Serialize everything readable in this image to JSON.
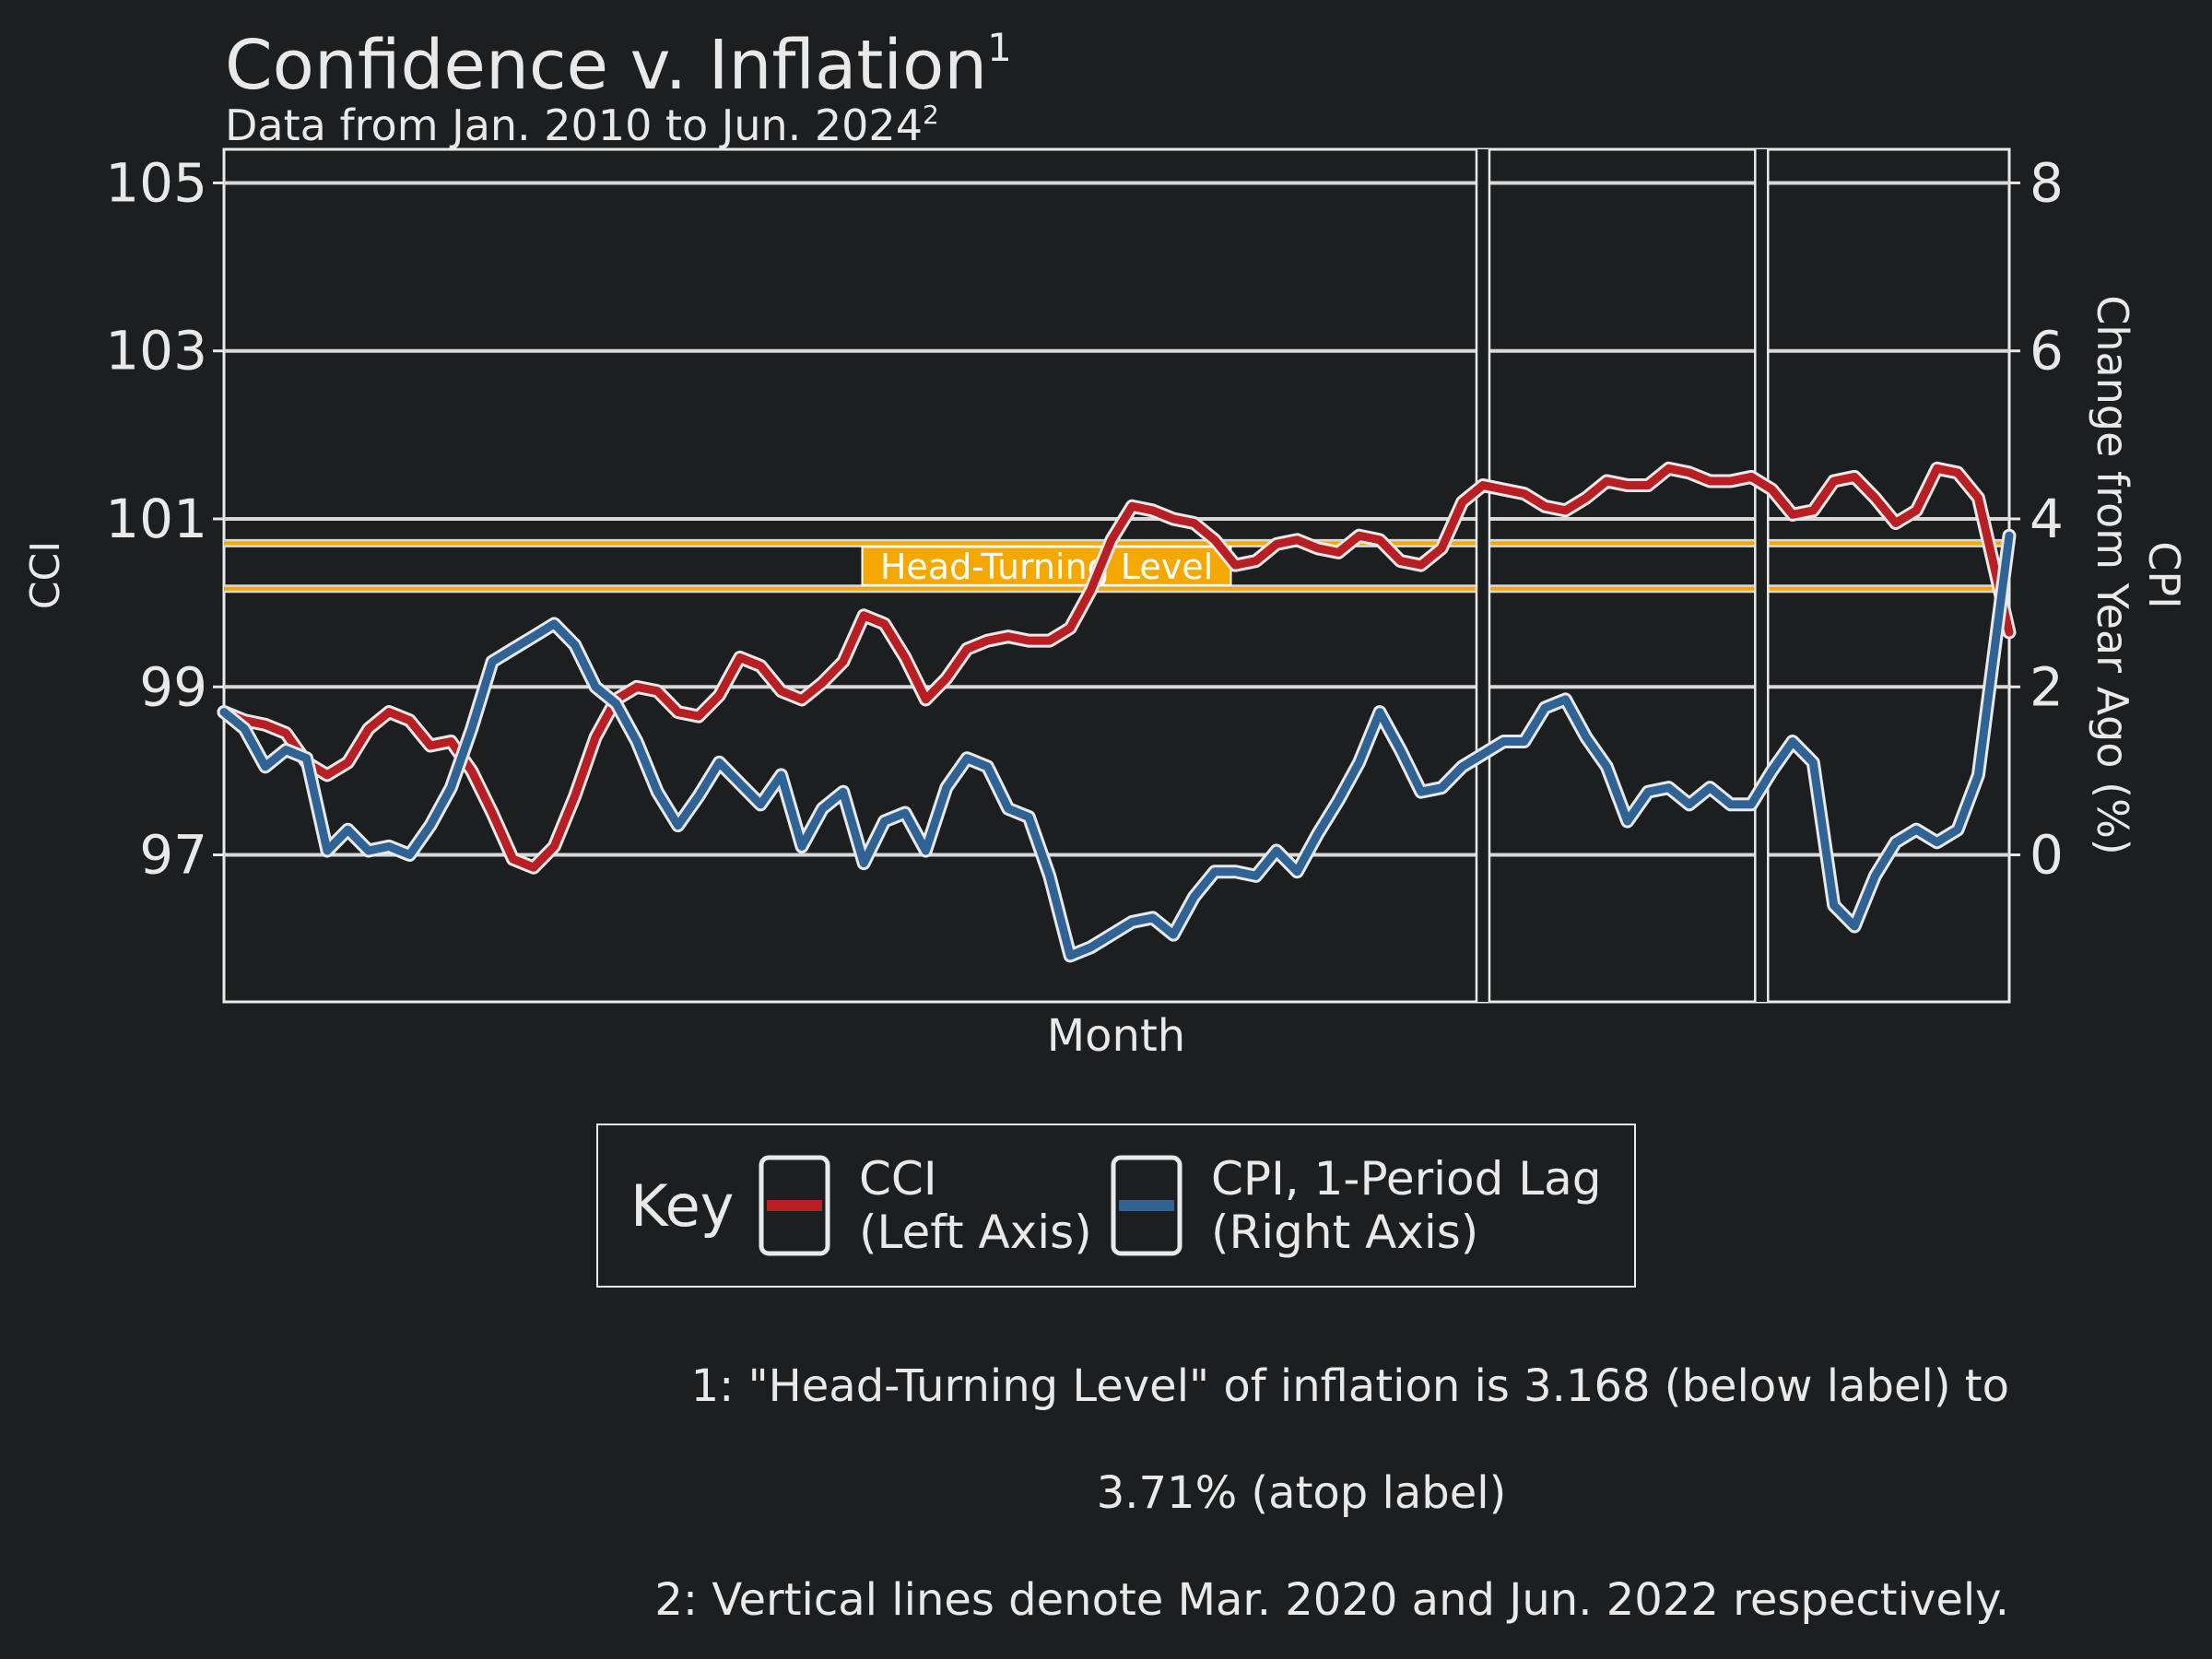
{
  "chart_data": {
    "type": "line",
    "title": "Confidence v. Inflation",
    "title_sup": "1",
    "subtitle": "Data from Jan. 2010 to Jun. 2024",
    "subtitle_sup": "2",
    "xlabel": "Month",
    "ylabel_left": "CCI",
    "ylabel_right_line1": "CPI",
    "ylabel_right_line2": "Change from Year Ago (%)",
    "x_range": [
      "2010-01",
      "2024-06"
    ],
    "ylim_left": [
      95.25,
      105.4
    ],
    "ylim_right": [
      -1.75,
      8.4
    ],
    "yticks_left": [
      97,
      99,
      101,
      103,
      105
    ],
    "yticks_right": [
      0,
      2,
      4,
      6,
      8
    ],
    "grid": "horizontal",
    "band": {
      "label": "Head-Turning Level",
      "low": 3.168,
      "high": 3.71,
      "color": "#f5a800"
    },
    "vlines": [
      "2020-03",
      "2022-06"
    ],
    "legend": {
      "title": "Key",
      "position": "bottom",
      "entries": [
        {
          "line1": "CCI",
          "line2": "(Left Axis)",
          "color": "#b81e22"
        },
        {
          "line1": "CPI, 1-Period Lag",
          "line2": "(Right Axis)",
          "color": "#2f6396"
        }
      ]
    },
    "series": [
      {
        "name": "CCI",
        "axis": "left",
        "color": "#b81e22",
        "points": [
          [
            "2010-01",
            98.7
          ],
          [
            "2010-03",
            98.6
          ],
          [
            "2010-05",
            98.55
          ],
          [
            "2010-07",
            98.45
          ],
          [
            "2010-09",
            98.1
          ],
          [
            "2010-11",
            97.95
          ],
          [
            "2011-01",
            98.1
          ],
          [
            "2011-03",
            98.5
          ],
          [
            "2011-05",
            98.7
          ],
          [
            "2011-07",
            98.6
          ],
          [
            "2011-09",
            98.3
          ],
          [
            "2011-11",
            98.35
          ],
          [
            "2012-01",
            98.0
          ],
          [
            "2012-03",
            97.5
          ],
          [
            "2012-05",
            96.95
          ],
          [
            "2012-07",
            96.85
          ],
          [
            "2012-09",
            97.1
          ],
          [
            "2012-11",
            97.7
          ],
          [
            "2013-01",
            98.4
          ],
          [
            "2013-03",
            98.85
          ],
          [
            "2013-05",
            99.0
          ],
          [
            "2013-07",
            98.95
          ],
          [
            "2013-09",
            98.7
          ],
          [
            "2013-11",
            98.65
          ],
          [
            "2014-01",
            98.9
          ],
          [
            "2014-03",
            99.35
          ],
          [
            "2014-05",
            99.25
          ],
          [
            "2014-07",
            98.95
          ],
          [
            "2014-09",
            98.85
          ],
          [
            "2014-11",
            99.05
          ],
          [
            "2015-01",
            99.3
          ],
          [
            "2015-03",
            99.85
          ],
          [
            "2015-05",
            99.75
          ],
          [
            "2015-07",
            99.35
          ],
          [
            "2015-09",
            98.85
          ],
          [
            "2015-11",
            99.1
          ],
          [
            "2016-01",
            99.45
          ],
          [
            "2016-03",
            99.55
          ],
          [
            "2016-05",
            99.6
          ],
          [
            "2016-07",
            99.55
          ],
          [
            "2016-09",
            99.55
          ],
          [
            "2016-11",
            99.7
          ],
          [
            "2017-01",
            100.15
          ],
          [
            "2017-03",
            100.75
          ],
          [
            "2017-05",
            101.15
          ],
          [
            "2017-07",
            101.1
          ],
          [
            "2017-09",
            101.0
          ],
          [
            "2017-11",
            100.95
          ],
          [
            "2018-01",
            100.75
          ],
          [
            "2018-03",
            100.45
          ],
          [
            "2018-05",
            100.5
          ],
          [
            "2018-07",
            100.7
          ],
          [
            "2018-09",
            100.75
          ],
          [
            "2018-11",
            100.65
          ],
          [
            "2019-01",
            100.6
          ],
          [
            "2019-03",
            100.8
          ],
          [
            "2019-05",
            100.75
          ],
          [
            "2019-07",
            100.5
          ],
          [
            "2019-09",
            100.45
          ],
          [
            "2019-11",
            100.65
          ],
          [
            "2020-01",
            101.2
          ],
          [
            "2020-03",
            101.4
          ],
          [
            "2020-05",
            101.35
          ],
          [
            "2020-07",
            101.3
          ],
          [
            "2020-09",
            101.15
          ],
          [
            "2020-11",
            101.1
          ],
          [
            "2021-01",
            101.25
          ],
          [
            "2021-03",
            101.45
          ],
          [
            "2021-05",
            101.4
          ],
          [
            "2021-07",
            101.4
          ],
          [
            "2021-09",
            101.6
          ],
          [
            "2021-11",
            101.55
          ],
          [
            "2022-01",
            101.45
          ],
          [
            "2022-03",
            101.45
          ],
          [
            "2022-05",
            101.5
          ],
          [
            "2022-07",
            101.35
          ],
          [
            "2022-09",
            101.05
          ],
          [
            "2022-11",
            101.1
          ],
          [
            "2023-01",
            101.45
          ],
          [
            "2023-03",
            101.5
          ],
          [
            "2023-05",
            101.25
          ],
          [
            "2023-07",
            100.95
          ],
          [
            "2023-09",
            101.1
          ],
          [
            "2023-11",
            101.6
          ],
          [
            "2024-01",
            101.55
          ],
          [
            "2024-03",
            101.25
          ],
          [
            "2024-06",
            99.65
          ]
        ]
      },
      {
        "name": "CPI, 1-Period Lag",
        "axis": "right",
        "color": "#2f6396",
        "points": [
          [
            "2010-01",
            1.7
          ],
          [
            "2010-03",
            1.5
          ],
          [
            "2010-05",
            1.05
          ],
          [
            "2010-07",
            1.25
          ],
          [
            "2010-09",
            1.15
          ],
          [
            "2010-11",
            0.05
          ],
          [
            "2011-01",
            0.3
          ],
          [
            "2011-03",
            0.05
          ],
          [
            "2011-05",
            0.1
          ],
          [
            "2011-07",
            0.0
          ],
          [
            "2011-09",
            0.35
          ],
          [
            "2011-11",
            0.8
          ],
          [
            "2012-01",
            1.5
          ],
          [
            "2012-03",
            2.3
          ],
          [
            "2012-05",
            2.45
          ],
          [
            "2012-07",
            2.6
          ],
          [
            "2012-09",
            2.75
          ],
          [
            "2012-11",
            2.5
          ],
          [
            "2013-01",
            2.0
          ],
          [
            "2013-03",
            1.8
          ],
          [
            "2013-05",
            1.35
          ],
          [
            "2013-07",
            0.75
          ],
          [
            "2013-09",
            0.35
          ],
          [
            "2013-11",
            0.7
          ],
          [
            "2014-01",
            1.1
          ],
          [
            "2014-03",
            0.85
          ],
          [
            "2014-05",
            0.6
          ],
          [
            "2014-07",
            0.95
          ],
          [
            "2014-09",
            0.1
          ],
          [
            "2014-11",
            0.55
          ],
          [
            "2015-01",
            0.75
          ],
          [
            "2015-03",
            -0.1
          ],
          [
            "2015-05",
            0.4
          ],
          [
            "2015-07",
            0.5
          ],
          [
            "2015-09",
            0.05
          ],
          [
            "2015-11",
            0.8
          ],
          [
            "2016-01",
            1.15
          ],
          [
            "2016-03",
            1.05
          ],
          [
            "2016-05",
            0.55
          ],
          [
            "2016-07",
            0.45
          ],
          [
            "2016-09",
            -0.25
          ],
          [
            "2016-11",
            -1.2
          ],
          [
            "2017-01",
            -1.1
          ],
          [
            "2017-03",
            -0.95
          ],
          [
            "2017-05",
            -0.8
          ],
          [
            "2017-07",
            -0.75
          ],
          [
            "2017-09",
            -0.95
          ],
          [
            "2017-11",
            -0.5
          ],
          [
            "2018-01",
            -0.2
          ],
          [
            "2018-03",
            -0.2
          ],
          [
            "2018-05",
            -0.25
          ],
          [
            "2018-07",
            0.05
          ],
          [
            "2018-09",
            -0.2
          ],
          [
            "2018-11",
            0.25
          ],
          [
            "2019-01",
            0.65
          ],
          [
            "2019-03",
            1.1
          ],
          [
            "2019-05",
            1.7
          ],
          [
            "2019-07",
            1.25
          ],
          [
            "2019-09",
            0.75
          ],
          [
            "2019-11",
            0.8
          ],
          [
            "2020-01",
            1.05
          ],
          [
            "2020-03",
            1.2
          ],
          [
            "2020-05",
            1.35
          ],
          [
            "2020-07",
            1.35
          ],
          [
            "2020-09",
            1.75
          ],
          [
            "2020-11",
            1.85
          ],
          [
            "2021-01",
            1.4
          ],
          [
            "2021-03",
            1.05
          ],
          [
            "2021-05",
            0.4
          ],
          [
            "2021-07",
            0.75
          ],
          [
            "2021-09",
            0.8
          ],
          [
            "2021-11",
            0.6
          ],
          [
            "2022-01",
            0.8
          ],
          [
            "2022-03",
            0.6
          ],
          [
            "2022-05",
            0.6
          ],
          [
            "2022-07",
            1.0
          ],
          [
            "2022-09",
            1.35
          ],
          [
            "2022-11",
            1.1
          ],
          [
            "2023-01",
            -0.6
          ],
          [
            "2023-03",
            -0.85
          ],
          [
            "2023-05",
            -0.25
          ],
          [
            "2023-07",
            0.15
          ],
          [
            "2023-09",
            0.3
          ],
          [
            "2023-11",
            0.15
          ],
          [
            "2024-01",
            0.3
          ],
          [
            "2024-03",
            0.95
          ],
          [
            "2024-06",
            3.8
          ]
        ]
      }
    ]
  },
  "footnotes": {
    "note1_line1": "1: \"Head-Turning Level\" of inflation is 3.168 (below label) to",
    "note1_line2": "3.71% (atop label)",
    "note2": "2: Vertical lines denote Mar. 2020 and Jun. 2022 respectively."
  }
}
